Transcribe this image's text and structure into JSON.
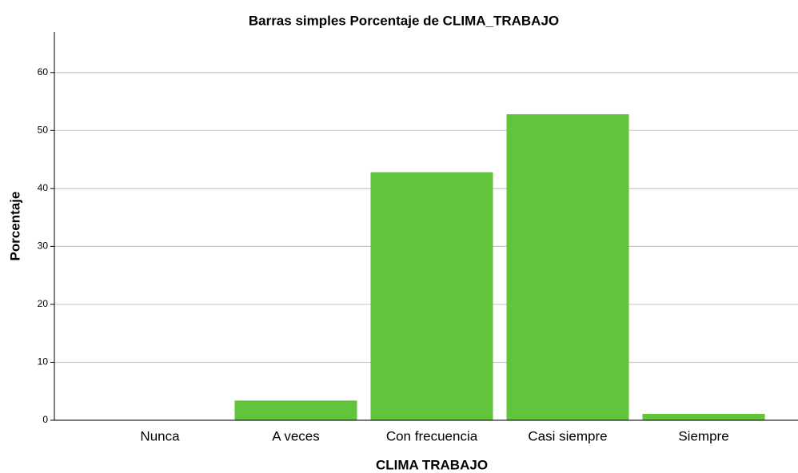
{
  "chart_data": {
    "type": "bar",
    "title": "Barras simples Porcentaje de CLIMA_TRABAJO",
    "x_label": "CLIMA  TRABAJO",
    "y_label": "Porcentaje",
    "categories": [
      "Nunca",
      "A veces",
      "Con frecuencia",
      "Casi siempre",
      "Siempre"
    ],
    "values": [
      0,
      3.4,
      42.8,
      52.8,
      1.1
    ],
    "color": "#62c43a",
    "ylim": [
      0,
      67
    ],
    "yticks": [
      0,
      10,
      20,
      30,
      40,
      50,
      60
    ],
    "grid": true
  }
}
